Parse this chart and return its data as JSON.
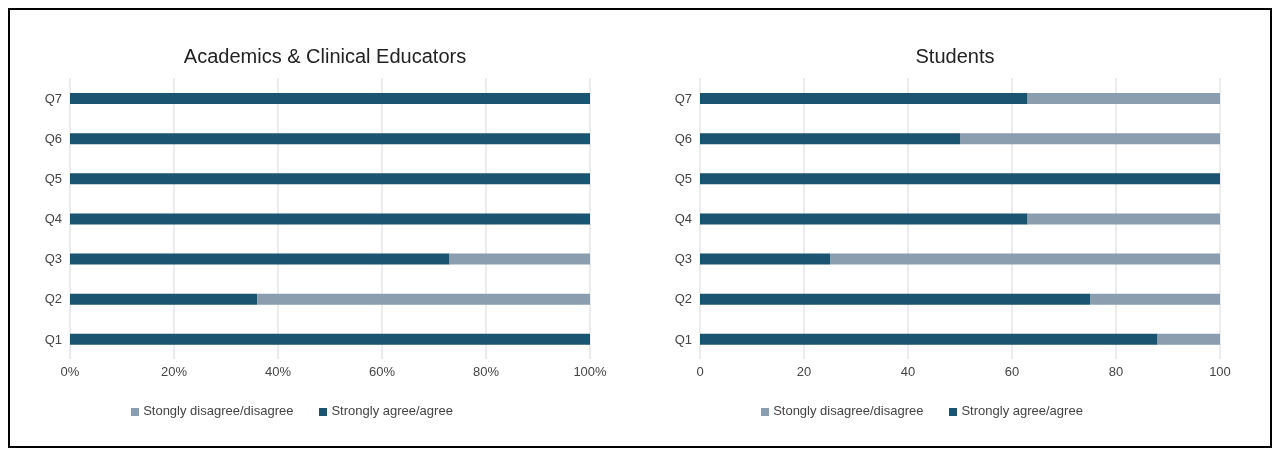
{
  "chart_data": [
    {
      "type": "bar",
      "title": "Academics & Clinical Educators",
      "orientation": "horizontal",
      "stacked": true,
      "categories": [
        "Q7",
        "Q6",
        "Q5",
        "Q4",
        "Q3",
        "Q2",
        "Q1"
      ],
      "series": [
        {
          "name": "Strongly agree/agree",
          "color": "#1a5470",
          "values": [
            100,
            100,
            100,
            100,
            73,
            36,
            100
          ]
        },
        {
          "name": "Stongly disagree/disagree",
          "color": "#8a9eb0",
          "values": [
            0,
            0,
            0,
            0,
            27,
            64,
            0
          ]
        }
      ],
      "xlim": [
        0,
        100
      ],
      "xticks": [
        {
          "value": 0,
          "label": "0%"
        },
        {
          "value": 20,
          "label": "20%"
        },
        {
          "value": 40,
          "label": "40%"
        },
        {
          "value": 60,
          "label": "60%"
        },
        {
          "value": 80,
          "label": "80%"
        },
        {
          "value": 100,
          "label": "100%"
        }
      ],
      "grid": "x",
      "legend": "bottom"
    },
    {
      "type": "bar",
      "title": "Students",
      "orientation": "horizontal",
      "stacked": true,
      "categories": [
        "Q7",
        "Q6",
        "Q5",
        "Q4",
        "Q3",
        "Q2",
        "Q1"
      ],
      "series": [
        {
          "name": "Strongly agree/agree",
          "color": "#1a5470",
          "values": [
            63,
            50,
            100,
            63,
            25,
            75,
            88
          ]
        },
        {
          "name": "Stongly disagree/disagree",
          "color": "#8a9eb0",
          "values": [
            37,
            50,
            0,
            37,
            75,
            25,
            12
          ]
        }
      ],
      "xlim": [
        0,
        100
      ],
      "xticks": [
        0,
        20,
        40,
        60,
        80,
        100
      ],
      "grid": "x",
      "legend": "bottom"
    }
  ]
}
